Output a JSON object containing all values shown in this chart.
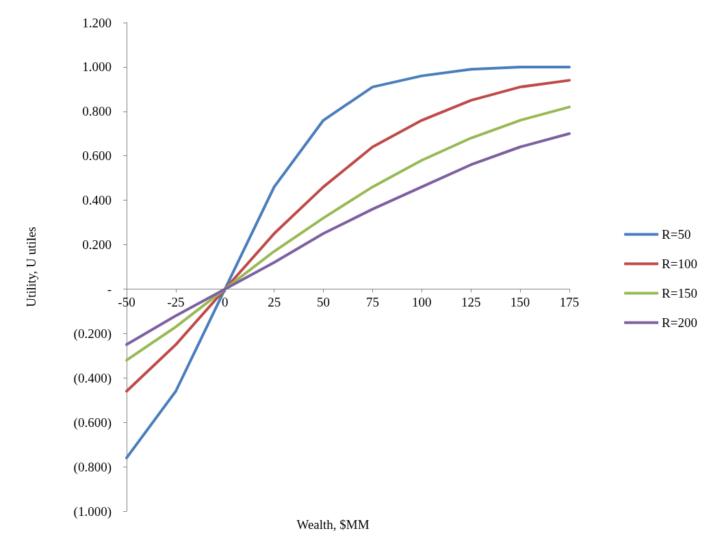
{
  "chart_data": {
    "type": "line",
    "xlabel": "Wealth, $MM",
    "ylabel": "Utility, U utiles",
    "categories": [
      "-50",
      "-25",
      "0",
      "25",
      "50",
      "75",
      "100",
      "125",
      "150",
      "175"
    ],
    "series": [
      {
        "name": "R=50",
        "color": "#4a7ebb",
        "values": [
          -0.76,
          -0.46,
          0,
          0.46,
          0.76,
          0.91,
          0.96,
          0.99,
          1.0,
          1.0
        ]
      },
      {
        "name": "R=100",
        "color": "#be4b48",
        "values": [
          -0.46,
          -0.25,
          0,
          0.25,
          0.46,
          0.64,
          0.76,
          0.85,
          0.91,
          0.94
        ]
      },
      {
        "name": "R=150",
        "color": "#98b954",
        "values": [
          -0.32,
          -0.17,
          0,
          0.17,
          0.32,
          0.46,
          0.58,
          0.68,
          0.76,
          0.82
        ]
      },
      {
        "name": "R=200",
        "color": "#7d60a0",
        "values": [
          -0.25,
          -0.12,
          0,
          0.12,
          0.25,
          0.36,
          0.46,
          0.56,
          0.64,
          0.7
        ]
      }
    ],
    "ylim": [
      -1,
      1.2
    ],
    "yticks": [
      {
        "value": -1,
        "label": "(1.000)"
      },
      {
        "value": -0.8,
        "label": "(0.800)"
      },
      {
        "value": -0.6,
        "label": "(0.600)"
      },
      {
        "value": -0.4,
        "label": "(0.400)"
      },
      {
        "value": -0.2,
        "label": "(0.200)"
      },
      {
        "value": 0,
        "label": "-"
      },
      {
        "value": 0.2,
        "label": "0.200"
      },
      {
        "value": 0.4,
        "label": "0.400"
      },
      {
        "value": 0.6,
        "label": "0.600"
      },
      {
        "value": 0.8,
        "label": "0.800"
      },
      {
        "value": 1,
        "label": "1.000"
      },
      {
        "value": 1.2,
        "label": "1.200"
      }
    ],
    "grid": false,
    "legend": "right",
    "marker": "none",
    "line_style": "solid"
  }
}
